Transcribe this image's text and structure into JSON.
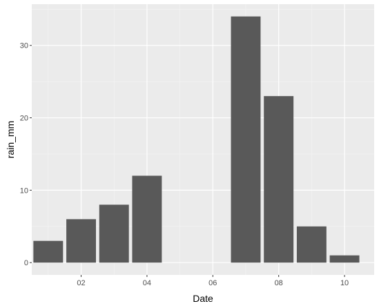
{
  "chart_data": {
    "type": "bar",
    "xlabel": "Date",
    "ylabel": "rain_mm",
    "x": [
      1,
      2,
      3,
      4,
      5,
      6,
      7,
      8,
      9,
      10
    ],
    "values": [
      3,
      6,
      8,
      12,
      0,
      0,
      34,
      23,
      5,
      1
    ],
    "xlim": [
      0.5,
      10.9
    ],
    "ylim": [
      -1.7,
      35.7
    ],
    "x_ticks": [
      2,
      4,
      6,
      8,
      10
    ],
    "x_tick_labels": [
      "02",
      "04",
      "06",
      "08",
      "10"
    ],
    "y_ticks": [
      0,
      10,
      20,
      30
    ],
    "y_tick_labels": [
      "0",
      "10",
      "20",
      "30"
    ],
    "grid": true,
    "colors": {
      "panel_background": "#ebebeb",
      "grid_major": "#ffffff",
      "grid_minor": "#f5f5f5",
      "bar_fill": "#595959",
      "tick_text": "#4d4d4d",
      "axis_title": "#000000"
    }
  }
}
